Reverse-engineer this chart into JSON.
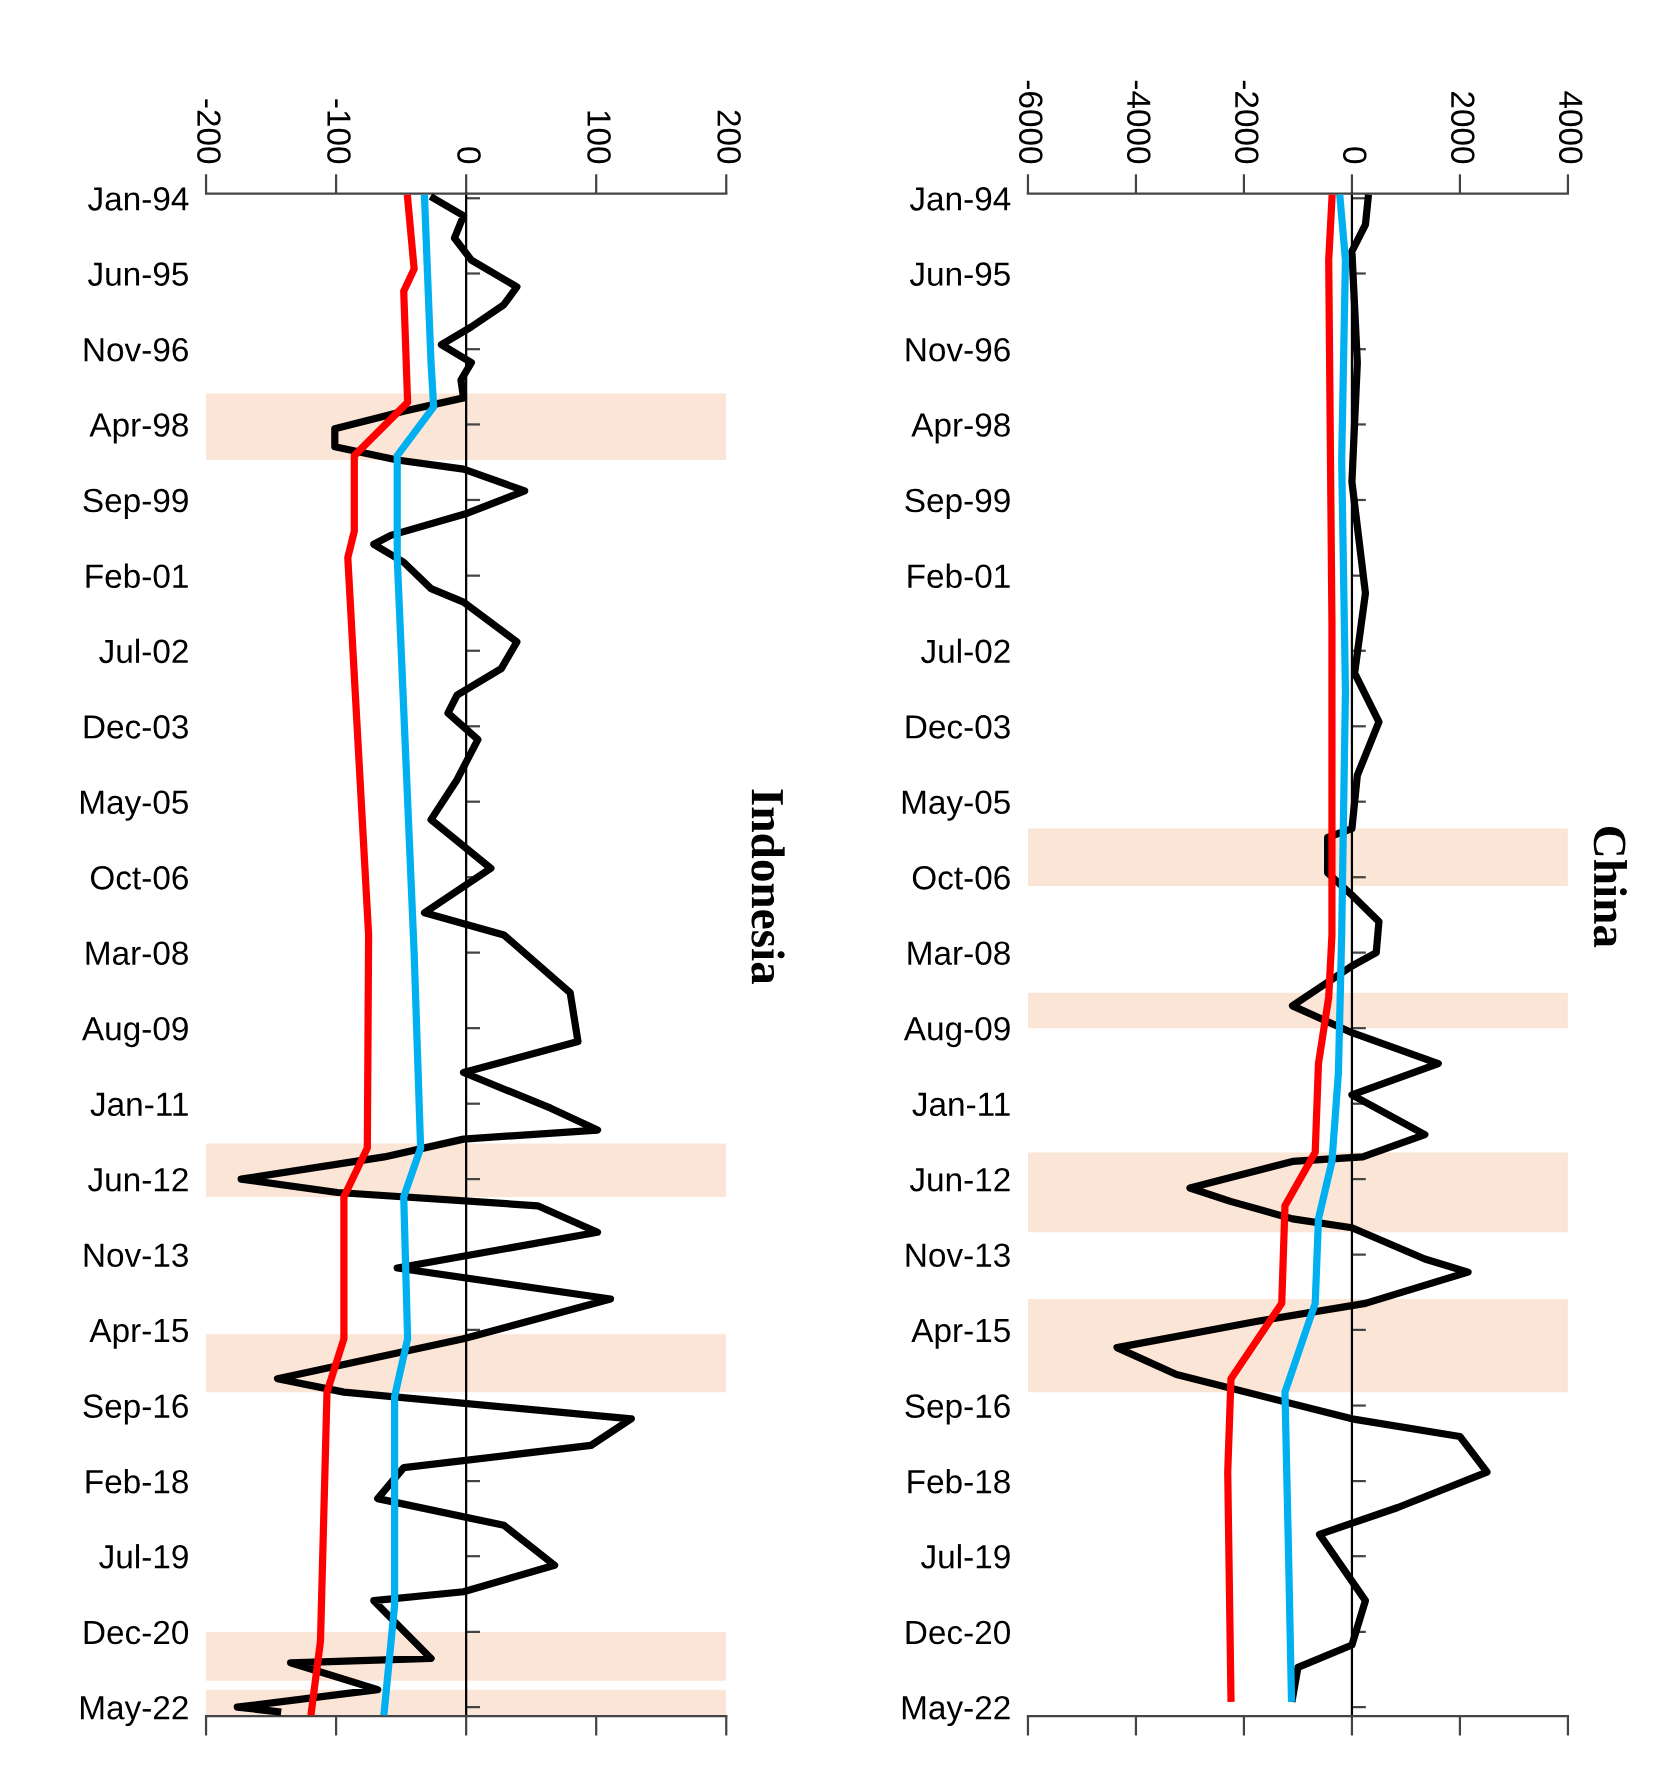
{
  "chart_data": [
    {
      "type": "line",
      "title": "Indonesia",
      "orientation": "horizontal",
      "ylim": [
        "2022-07",
        "1993-12"
      ],
      "xlim": [
        -200,
        200
      ],
      "xticks": [
        -200,
        -100,
        0,
        100,
        200
      ],
      "yticks": [
        {
          "value": "1994-01",
          "label": "Jan-94"
        },
        {
          "value": "1995-06",
          "label": "Jun-95"
        },
        {
          "value": "1996-11",
          "label": "Nov-96"
        },
        {
          "value": "1998-04",
          "label": "Apr-98"
        },
        {
          "value": "1999-09",
          "label": "Sep-99"
        },
        {
          "value": "2001-02",
          "label": "Feb-01"
        },
        {
          "value": "2002-07",
          "label": "Jul-02"
        },
        {
          "value": "2003-12",
          "label": "Dec-03"
        },
        {
          "value": "2005-05",
          "label": "May-05"
        },
        {
          "value": "2006-10",
          "label": "Oct-06"
        },
        {
          "value": "2008-03",
          "label": "Mar-08"
        },
        {
          "value": "2009-08",
          "label": "Aug-09"
        },
        {
          "value": "2011-01",
          "label": "Jan-11"
        },
        {
          "value": "2012-06",
          "label": "Jun-12"
        },
        {
          "value": "2013-11",
          "label": "Nov-13"
        },
        {
          "value": "2015-04",
          "label": "Apr-15"
        },
        {
          "value": "2016-09",
          "label": "Sep-16"
        },
        {
          "value": "2018-02",
          "label": "Feb-18"
        },
        {
          "value": "2019-07",
          "label": "Jul-19"
        },
        {
          "value": "2020-12",
          "label": "Dec-20"
        },
        {
          "value": "2022-05",
          "label": "May-22"
        }
      ],
      "bands": [
        {
          "axis": "y",
          "from": "1997-09",
          "to": "1998-12",
          "color": "#fbe5d6"
        },
        {
          "axis": "y",
          "from": "2011-10",
          "to": "2012-10",
          "color": "#fbe5d6"
        },
        {
          "axis": "y",
          "from": "2015-05",
          "to": "2016-06",
          "color": "#fbe5d6"
        },
        {
          "axis": "y",
          "from": "2020-12",
          "to": "2021-11",
          "color": "#fbe5d6"
        },
        {
          "axis": "y",
          "from": "2022-01",
          "to": "2022-07",
          "color": "#fbe5d6"
        }
      ],
      "series": [
        {
          "color": "#000000",
          "x": [
            "1994-01",
            "1994-05",
            "1994-10",
            "1995-03",
            "1995-09",
            "1996-01",
            "1996-06",
            "1996-10",
            "1997-02",
            "1997-06",
            "1997-10",
            "1998-01",
            "1998-05",
            "1998-09",
            "1998-12",
            "1999-02",
            "1999-07",
            "1999-12",
            "2000-05",
            "2000-07",
            "2000-11",
            "2001-05",
            "2001-08",
            "2002-05",
            "2002-11",
            "2003-05",
            "2003-09",
            "2004-03",
            "2004-12",
            "2005-09",
            "2006-08",
            "2007-06",
            "2007-11",
            "2008-12",
            "2009-11",
            "2010-06",
            "2011-02",
            "2011-07",
            "2011-09",
            "2012-01",
            "2012-06",
            "2012-09",
            "2012-12",
            "2013-06",
            "2014-02",
            "2014-09",
            "2015-06",
            "2016-03",
            "2016-06",
            "2016-12",
            "2017-06",
            "2017-11",
            "2018-06",
            "2018-12",
            "2019-09",
            "2020-03",
            "2020-05",
            "2021-06",
            "2021-07",
            "2022-01",
            "2022-05",
            "2022-06"
          ],
          "values": [
            -25,
            -2,
            -9,
            4,
            39,
            29,
            4,
            -19,
            4,
            -4,
            -2,
            -48,
            -101,
            -101,
            -53,
            -2,
            45,
            1,
            -58,
            -71,
            -48,
            -27,
            -2,
            39,
            27,
            -7,
            -14,
            9,
            -7,
            -27,
            19,
            -32,
            29,
            80,
            86,
            -2,
            65,
            101,
            -2,
            -63,
            -173,
            -99,
            55,
            101,
            -53,
            111,
            -2,
            -145,
            -94,
            127,
            96,
            -48,
            -68,
            29,
            68,
            -2,
            -71,
            -27,
            -135,
            -68,
            -176,
            -145
          ]
        },
        {
          "color": "#ff0000",
          "x": [
            "1994-01",
            "1995-05",
            "1995-10",
            "1997-11",
            "1998-11",
            "2000-04",
            "2000-10",
            "2007-11",
            "2011-11",
            "2012-10",
            "2015-06",
            "2016-06",
            "2021-02",
            "2022-06"
          ],
          "values": [
            -45,
            -40,
            -48,
            -45,
            -86,
            -86,
            -91,
            -75,
            -76,
            -94,
            -94,
            -107,
            -112,
            -119
          ]
        },
        {
          "color": "#00b0f0",
          "x": [
            "1994-01",
            "1997-02",
            "1997-12",
            "1998-11",
            "2000-10",
            "2008-03",
            "2011-11",
            "2012-10",
            "2015-06",
            "2016-07",
            "2020-06",
            "2022-06"
          ],
          "values": [
            -32,
            -27,
            -25,
            -53,
            -53,
            -40,
            -35,
            -48,
            -45,
            -55,
            -55,
            -63
          ]
        }
      ]
    },
    {
      "type": "line",
      "title": "China",
      "orientation": "horizontal",
      "ylim": [
        "2022-07",
        "1993-12"
      ],
      "xlim": [
        -6000,
        4000
      ],
      "xticks": [
        -6000,
        -4000,
        -2000,
        0,
        2000,
        4000
      ],
      "yticks": [
        {
          "value": "1994-01",
          "label": "Jan-94"
        },
        {
          "value": "1995-06",
          "label": "Jun-95"
        },
        {
          "value": "1996-11",
          "label": "Nov-96"
        },
        {
          "value": "1998-04",
          "label": "Apr-98"
        },
        {
          "value": "1999-09",
          "label": "Sep-99"
        },
        {
          "value": "2001-02",
          "label": "Feb-01"
        },
        {
          "value": "2002-07",
          "label": "Jul-02"
        },
        {
          "value": "2003-12",
          "label": "Dec-03"
        },
        {
          "value": "2005-05",
          "label": "May-05"
        },
        {
          "value": "2006-10",
          "label": "Oct-06"
        },
        {
          "value": "2008-03",
          "label": "Mar-08"
        },
        {
          "value": "2009-08",
          "label": "Aug-09"
        },
        {
          "value": "2011-01",
          "label": "Jan-11"
        },
        {
          "value": "2012-06",
          "label": "Jun-12"
        },
        {
          "value": "2013-11",
          "label": "Nov-13"
        },
        {
          "value": "2015-04",
          "label": "Apr-15"
        },
        {
          "value": "2016-09",
          "label": "Sep-16"
        },
        {
          "value": "2018-02",
          "label": "Feb-18"
        },
        {
          "value": "2019-07",
          "label": "Jul-19"
        },
        {
          "value": "2020-12",
          "label": "Dec-20"
        },
        {
          "value": "2022-05",
          "label": "May-22"
        }
      ],
      "bands": [
        {
          "axis": "y",
          "from": "2005-11",
          "to": "2006-12",
          "color": "#fbe5d6"
        },
        {
          "axis": "y",
          "from": "2008-12",
          "to": "2009-08",
          "color": "#fbe5d6"
        },
        {
          "axis": "y",
          "from": "2011-12",
          "to": "2013-06",
          "color": "#fbe5d6"
        },
        {
          "axis": "y",
          "from": "2014-09",
          "to": "2016-06",
          "color": "#fbe5d6"
        }
      ],
      "series": [
        {
          "color": "#000000",
          "x": [
            "1994-01",
            "1994-07",
            "1995-01",
            "1997-02",
            "1999-05",
            "2001-06",
            "2002-12",
            "2003-11",
            "2004-11",
            "2005-11",
            "2006-01",
            "2006-09",
            "2007-02",
            "2007-08",
            "2008-03",
            "2008-06",
            "2009-03",
            "2009-09",
            "2010-04",
            "2010-11",
            "2011-08",
            "2012-01",
            "2012-02",
            "2012-08",
            "2012-11",
            "2013-03",
            "2013-05",
            "2013-12",
            "2014-03",
            "2014-10",
            "2015-02",
            "2015-08",
            "2016-02",
            "2016-12",
            "2017-04",
            "2017-12",
            "2018-08",
            "2019-02",
            "2020-05",
            "2021-03",
            "2021-08",
            "2022-03"
          ],
          "values": [
            300,
            250,
            0,
            100,
            0,
            250,
            50,
            500,
            100,
            0,
            -450,
            -450,
            0,
            500,
            450,
            0,
            -1100,
            0,
            1600,
            0,
            1350,
            200,
            -1100,
            -3000,
            -2250,
            -1100,
            0,
            1350,
            2150,
            250,
            -1750,
            -4350,
            -3250,
            0,
            2000,
            2500,
            850,
            -600,
            250,
            0,
            -1000,
            -1100
          ]
        },
        {
          "color": "#ff0000",
          "x": [
            "1994-01",
            "1995-03",
            "2002-01",
            "2007-11",
            "2009-01",
            "2010-04",
            "2011-12",
            "2012-12",
            "2014-10",
            "2016-03",
            "2017-12",
            "2022-03"
          ],
          "values": [
            -370,
            -430,
            -370,
            -370,
            -430,
            -620,
            -680,
            -1240,
            -1300,
            -2240,
            -2300,
            -2240
          ]
        },
        {
          "color": "#00b0f0",
          "x": [
            "1994-01",
            "1995-03",
            "1998-12",
            "2003-04",
            "2007-11",
            "2010-06",
            "2012-02",
            "2013-03",
            "2014-10",
            "2016-06",
            "2019-03",
            "2022-03"
          ],
          "values": [
            -220,
            -120,
            -190,
            -120,
            -190,
            -250,
            -370,
            -620,
            -680,
            -1240,
            -1180,
            -1120
          ]
        }
      ]
    }
  ]
}
